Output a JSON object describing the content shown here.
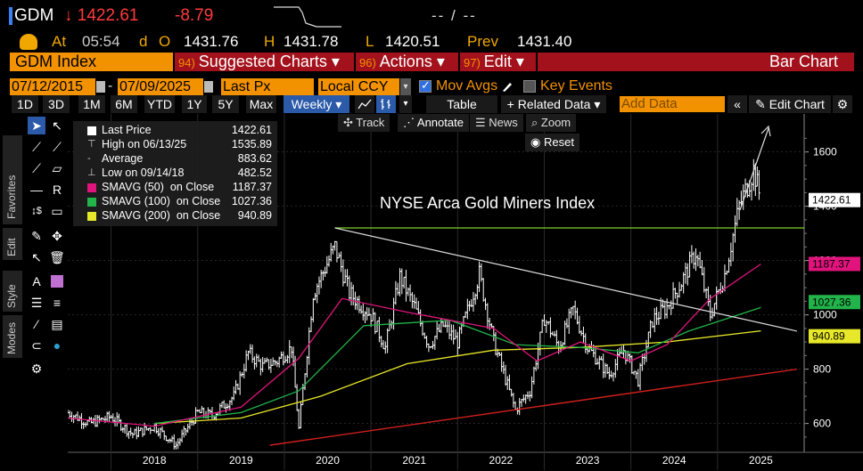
{
  "quote": {
    "ticker": "GDM",
    "arrow": "↓",
    "last": "1422.61",
    "change": "-8.79",
    "bid_ask": "-- / --",
    "at_label": "At",
    "time": "05:54",
    "d_label": "d",
    "o_label": "O",
    "open": "1431.76",
    "h_label": "H",
    "high": "1431.78",
    "l_label": "L",
    "low": "1420.51",
    "prev_label": "Prev",
    "prev": "1431.40"
  },
  "menubar": {
    "security": "GDM Index",
    "suggested": {
      "num": "94)",
      "label": "Suggested Charts ▾"
    },
    "actions": {
      "num": "96)",
      "label": "Actions ▾"
    },
    "edit": {
      "num": "97)",
      "label": "Edit ▾"
    },
    "chart_type": "Bar Chart"
  },
  "settings": {
    "start_date": "07/12/2015",
    "end_date": "07/09/2025",
    "field": "Last Px",
    "currency": "Local CCY",
    "mov_avgs": "Mov Avgs",
    "key_events": "Key Events"
  },
  "toolbar": {
    "periods": [
      "1D",
      "3D",
      "1M",
      "6M",
      "YTD",
      "1Y",
      "5Y",
      "Max"
    ],
    "frequency": "Weekly ▾",
    "table": "Table",
    "related": "+ Related Data ▾",
    "add_data_placeholder": "Add Data",
    "edit_chart": "Edit Chart"
  },
  "subtools": {
    "track": "Track",
    "annotate": "Annotate",
    "news": "News",
    "zoom": "Zoom",
    "reset": "Reset"
  },
  "side_tabs": [
    "Favorites",
    "Edit",
    "Style",
    "Modes"
  ],
  "legend": [
    {
      "name": "Last Price",
      "value": "1422.61",
      "color": "#ffffff",
      "marker": "box"
    },
    {
      "name": "High on 06/13/25",
      "value": "1535.89",
      "color": "#cccccc",
      "marker": "T"
    },
    {
      "name": "Average",
      "value": "883.62",
      "color": "#cccccc",
      "marker": "dash"
    },
    {
      "name": "Low on 09/14/18",
      "value": "482.52",
      "color": "#cccccc",
      "marker": "L"
    },
    {
      "name": "SMAVG (50)  on Close",
      "value": "1187.37",
      "color": "#e0147c",
      "marker": "box"
    },
    {
      "name": "SMAVG (100)  on Close",
      "value": "1027.36",
      "color": "#22b34a",
      "marker": "box"
    },
    {
      "name": "SMAVG (200)  on Close",
      "value": "940.89",
      "color": "#e8e82a",
      "marker": "box"
    }
  ],
  "chart_data": {
    "type": "bar",
    "title": "NYSE Arca Gold Miners Index",
    "x_labels": [
      "2018",
      "2019",
      "2020",
      "2021",
      "2022",
      "2023",
      "2024",
      "2025"
    ],
    "y_ticks": [
      600,
      800,
      1000,
      1200,
      1400,
      1600
    ],
    "ylim": [
      520,
      1720
    ],
    "last_price": 1422.61,
    "price_tags": [
      {
        "value": "1422.61",
        "level": 1422.61,
        "color": "#ffffff"
      },
      {
        "value": "1187.37",
        "level": 1187.37,
        "color": "#e0147c"
      },
      {
        "value": "1027.36",
        "level": 1027.36,
        "color": "#22b34a"
      },
      {
        "value": "940.89",
        "level": 940.89,
        "color": "#e8e82a"
      }
    ],
    "weekly_close": [
      [
        "2017-07",
        640
      ],
      [
        "2017-10",
        600
      ],
      [
        "2018-01",
        625
      ],
      [
        "2018-04",
        560
      ],
      [
        "2018-07",
        590
      ],
      [
        "2018-10",
        520
      ],
      [
        "2019-01",
        640
      ],
      [
        "2019-03",
        630
      ],
      [
        "2019-06",
        700
      ],
      [
        "2019-08",
        860
      ],
      [
        "2019-10",
        810
      ],
      [
        "2019-12",
        830
      ],
      [
        "2020-02",
        880
      ],
      [
        "2020-03",
        580
      ],
      [
        "2020-05",
        1080
      ],
      [
        "2020-08",
        1250
      ],
      [
        "2020-10",
        1080
      ],
      [
        "2021-01",
        1000
      ],
      [
        "2021-03",
        880
      ],
      [
        "2021-05",
        1140
      ],
      [
        "2021-07",
        1030
      ],
      [
        "2021-09",
        890
      ],
      [
        "2021-11",
        960
      ],
      [
        "2022-01",
        900
      ],
      [
        "2022-04",
        1150
      ],
      [
        "2022-06",
        900
      ],
      [
        "2022-09",
        650
      ],
      [
        "2022-11",
        720
      ],
      [
        "2023-01",
        990
      ],
      [
        "2023-03",
        880
      ],
      [
        "2023-05",
        1020
      ],
      [
        "2023-07",
        880
      ],
      [
        "2023-10",
        780
      ],
      [
        "2023-12",
        870
      ],
      [
        "2024-02",
        760
      ],
      [
        "2024-04",
        980
      ],
      [
        "2024-06",
        1030
      ],
      [
        "2024-08",
        1120
      ],
      [
        "2024-10",
        1230
      ],
      [
        "2024-12",
        1000
      ],
      [
        "2025-02",
        1150
      ],
      [
        "2025-04",
        1400
      ],
      [
        "2025-06",
        1535
      ],
      [
        "2025-07",
        1422
      ]
    ],
    "sma50": [
      [
        "2017-07",
        620
      ],
      [
        "2018-07",
        590
      ],
      [
        "2019-07",
        660
      ],
      [
        "2020-03",
        840
      ],
      [
        "2020-09",
        1060
      ],
      [
        "2021-06",
        1010
      ],
      [
        "2021-12",
        980
      ],
      [
        "2022-06",
        950
      ],
      [
        "2022-12",
        830
      ],
      [
        "2023-06",
        900
      ],
      [
        "2024-01",
        830
      ],
      [
        "2024-06",
        890
      ],
      [
        "2024-12",
        1060
      ],
      [
        "2025-07",
        1187
      ]
    ],
    "sma100": [
      [
        "2018-07",
        600
      ],
      [
        "2019-07",
        640
      ],
      [
        "2020-03",
        720
      ],
      [
        "2020-12",
        960
      ],
      [
        "2021-12",
        980
      ],
      [
        "2022-09",
        890
      ],
      [
        "2023-06",
        880
      ],
      [
        "2024-02",
        860
      ],
      [
        "2024-09",
        940
      ],
      [
        "2025-07",
        1027
      ]
    ],
    "sma200": [
      [
        "2018-07",
        600
      ],
      [
        "2019-07",
        620
      ],
      [
        "2020-06",
        700
      ],
      [
        "2021-06",
        820
      ],
      [
        "2022-06",
        870
      ],
      [
        "2023-06",
        880
      ],
      [
        "2024-06",
        900
      ],
      [
        "2025-07",
        941
      ]
    ],
    "annotations": {
      "resistance_level": 1320,
      "downtrend": [
        [
          "2020-08",
          1320
        ],
        [
          "2025-12",
          940
        ]
      ],
      "uptrend": [
        [
          "2019-11",
          520
        ],
        [
          "2025-12",
          800
        ]
      ]
    }
  },
  "colors": {
    "accent": "#f39200",
    "menubar": "#a3121c",
    "down": "#ff3b3b",
    "highlight": "#2a5aa8"
  }
}
